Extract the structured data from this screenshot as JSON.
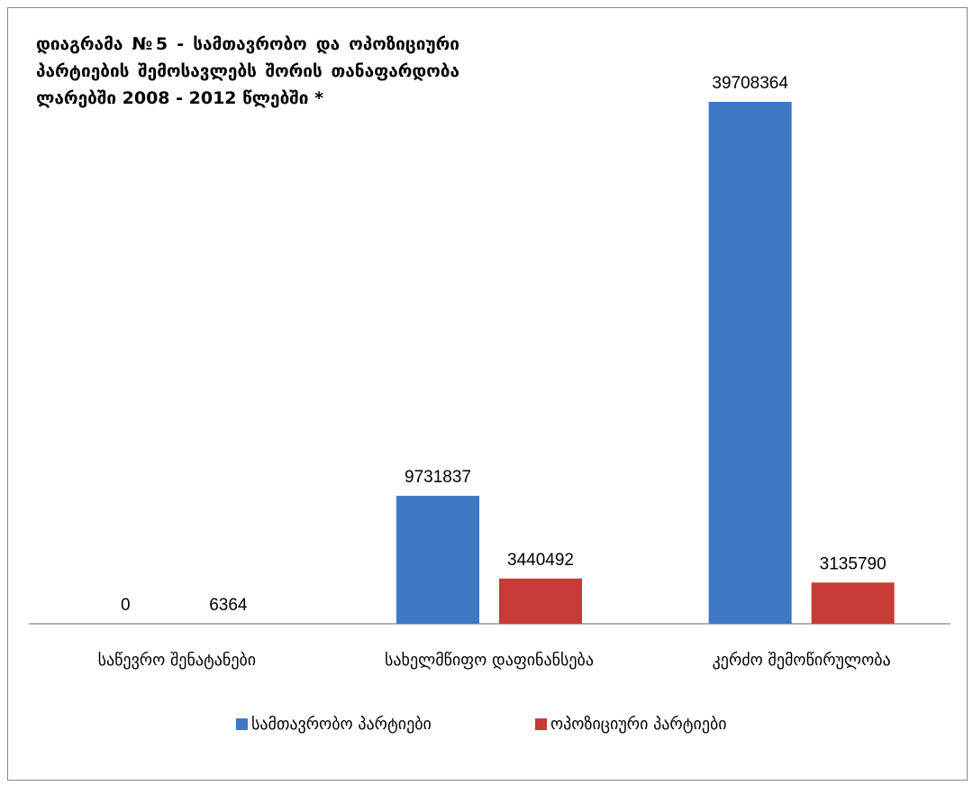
{
  "chart_data": {
    "type": "bar",
    "title": "დიაგრამა №5 - სამთავრობო და ოპოზიციური პარტიების შემოსავლებს შორის თანაფარდობა ლარებში 2008 - 2012 წლებში *",
    "categories": [
      "საწევრო შენატანები",
      "სახელმწიფო დაფინანსება",
      "კერძო შემოწირულობა"
    ],
    "series": [
      {
        "name": "სამთავრობო პარტიები",
        "color": "#3f78c4",
        "values": [
          0,
          9731837,
          39708364
        ]
      },
      {
        "name": "ოპოზიციური პარტიები",
        "color": "#c83a35",
        "values": [
          6364,
          3440492,
          3135790
        ]
      }
    ],
    "legend": "bottom"
  }
}
